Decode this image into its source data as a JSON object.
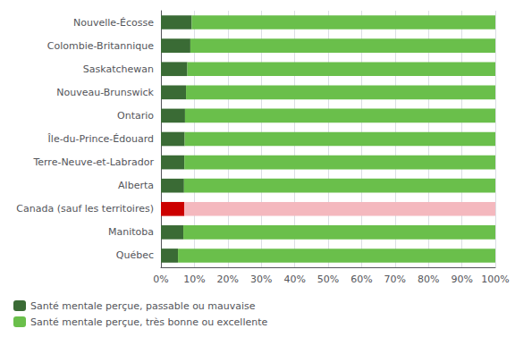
{
  "chart_data": {
    "type": "bar",
    "orientation": "horizontal",
    "stacked": true,
    "categories": [
      "Nouvelle-Écosse",
      "Colombie-Britannique",
      "Saskatchewan",
      "Nouveau-Brunswick",
      "Ontario",
      "Île-du-Prince-Édouard",
      "Terre-Neuve-et-Labrador",
      "Alberta",
      "Canada (sauf les territoires)",
      "Manitoba",
      "Québec"
    ],
    "series": [
      {
        "name": "Santé mentale perçue, passable ou mauvaise",
        "color": "#3a6b35",
        "colors": [
          "#3a6b35",
          "#3a6b35",
          "#3a6b35",
          "#3a6b35",
          "#3a6b35",
          "#3a6b35",
          "#3a6b35",
          "#3a6b35",
          "#cc0000",
          "#3a6b35",
          "#3a6b35"
        ],
        "values": [
          9.2,
          8.8,
          7.9,
          7.5,
          7.2,
          7.1,
          7.0,
          6.9,
          7.0,
          6.7,
          5.1
        ]
      },
      {
        "name": "Santé mentale perçue, très bonne ou excellente",
        "color": "#6abf4b",
        "colors": [
          "#6abf4b",
          "#6abf4b",
          "#6abf4b",
          "#6abf4b",
          "#6abf4b",
          "#6abf4b",
          "#6abf4b",
          "#6abf4b",
          "#f4b8be",
          "#6abf4b",
          "#6abf4b"
        ],
        "values": [
          90.8,
          91.2,
          92.1,
          92.5,
          92.8,
          92.9,
          93.0,
          93.1,
          93.0,
          93.3,
          94.9
        ]
      }
    ],
    "xlim": [
      0,
      100
    ],
    "xticks": [
      {
        "value": 0,
        "label": "0%"
      },
      {
        "value": 10,
        "label": "10%"
      },
      {
        "value": 20,
        "label": "20%"
      },
      {
        "value": 30,
        "label": "30%"
      },
      {
        "value": 40,
        "label": "40%"
      },
      {
        "value": 50,
        "label": "50%"
      },
      {
        "value": 60,
        "label": "60%"
      },
      {
        "value": 70,
        "label": "70%"
      },
      {
        "value": 80,
        "label": "80%"
      },
      {
        "value": 90,
        "label": "90%"
      },
      {
        "value": 100,
        "label": "100%"
      }
    ],
    "grid": true,
    "legend": "bottom"
  }
}
